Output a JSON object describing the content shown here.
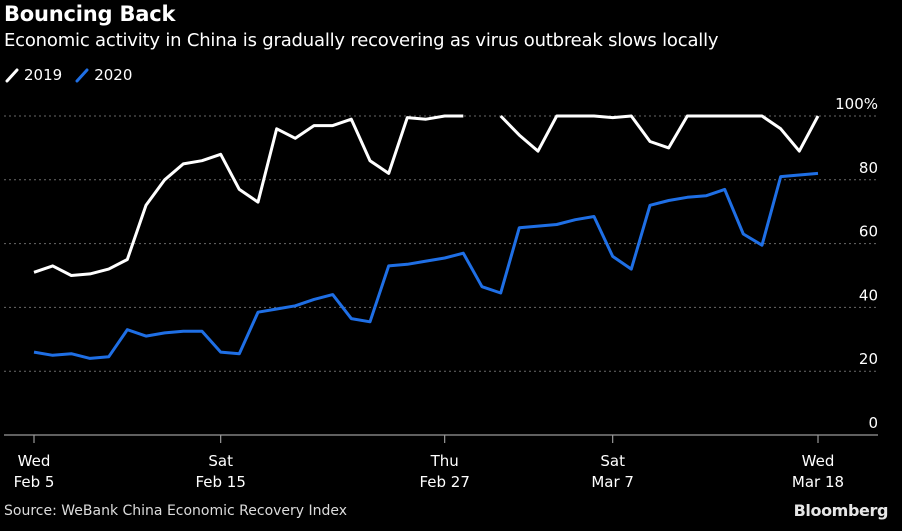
{
  "title": "Bouncing Back",
  "subtitle": "Economic activity in China is gradually recovering as virus outbreak slows locally",
  "source": "Source: WeBank China Economic Recovery Index",
  "brand": "Bloomberg",
  "colors": {
    "background": "#000000",
    "series_2019": "#ffffff",
    "series_2020": "#1f6fe5",
    "grid": "#6a6a6a",
    "axis": "#9a9a9a",
    "text": "#ffffff"
  },
  "chart_data": {
    "type": "line",
    "title": "Bouncing Back",
    "subtitle": "Economic activity in China is gradually recovering as virus outbreak slows locally",
    "ylim": [
      0,
      100
    ],
    "y_ticks": [
      0,
      20,
      40,
      60,
      80,
      100
    ],
    "y_tick_labels": [
      "0",
      "20",
      "40",
      "60",
      "80",
      "100%"
    ],
    "y_axis_position": "right",
    "grid": "horizontal dotted",
    "legend_position": "top-left",
    "x": [
      "Feb 5",
      "Feb 6",
      "Feb 7",
      "Feb 8",
      "Feb 9",
      "Feb 10",
      "Feb 11",
      "Feb 12",
      "Feb 13",
      "Feb 14",
      "Feb 15",
      "Feb 16",
      "Feb 17",
      "Feb 18",
      "Feb 19",
      "Feb 20",
      "Feb 21",
      "Feb 22",
      "Feb 23",
      "Feb 24",
      "Feb 25",
      "Feb 26",
      "Feb 27",
      "Feb 28",
      "Feb 29",
      "Mar 1",
      "Mar 2",
      "Mar 3",
      "Mar 4",
      "Mar 5",
      "Mar 6",
      "Mar 7",
      "Mar 8",
      "Mar 9",
      "Mar 10",
      "Mar 11",
      "Mar 12",
      "Mar 13",
      "Mar 14",
      "Mar 15",
      "Mar 16",
      "Mar 17",
      "Mar 18"
    ],
    "x_ticks": [
      {
        "index": 0,
        "line1": "Wed",
        "line2": "Feb 5"
      },
      {
        "index": 10,
        "line1": "Sat",
        "line2": "Feb 15"
      },
      {
        "index": 22,
        "line1": "Thu",
        "line2": "Feb 27"
      },
      {
        "index": 31,
        "line1": "Sat",
        "line2": "Mar 7"
      },
      {
        "index": 42,
        "line1": "Wed",
        "line2": "Mar 18"
      }
    ],
    "series": [
      {
        "name": "2019",
        "color": "#ffffff",
        "values": [
          51,
          53,
          50,
          50.5,
          52,
          55,
          72,
          80,
          85,
          86,
          88,
          77,
          73,
          96,
          93,
          97,
          97,
          99,
          86,
          82,
          99.5,
          99,
          100,
          100,
          null,
          100,
          94,
          89,
          100,
          100,
          100,
          99.5,
          100,
          92,
          90,
          100,
          100,
          100,
          100,
          100,
          96,
          89,
          100
        ]
      },
      {
        "name": "2020",
        "color": "#1f6fe5",
        "values": [
          26,
          25,
          25.5,
          24,
          24.5,
          33,
          31,
          32,
          32.5,
          32.5,
          26,
          25.5,
          38.5,
          39.5,
          40.5,
          42.5,
          44,
          36.5,
          35.5,
          53,
          53.5,
          54.5,
          55.5,
          57,
          46.5,
          44.5,
          65,
          65.5,
          66,
          67.5,
          68.5,
          56,
          52,
          72,
          73.5,
          74.5,
          75,
          77,
          63,
          59.5,
          81,
          81.5,
          82
        ]
      }
    ]
  }
}
